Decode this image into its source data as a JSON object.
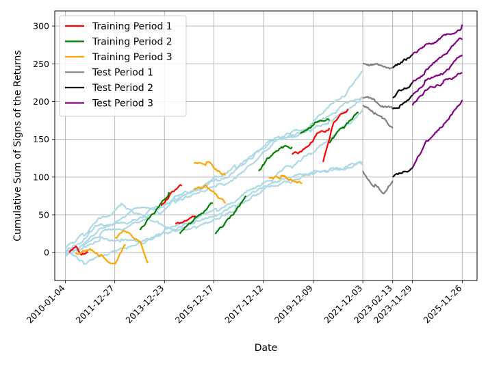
{
  "chart_data": {
    "type": "line",
    "xlabel": "Date",
    "ylabel": "Cumulative Sum of Signs of the Returns",
    "grid": true,
    "legend_position": "top-left",
    "x_type": "date",
    "xlim": [
      "2009-08-01",
      "2026-07-01"
    ],
    "ylim": [
      -37,
      320
    ],
    "x_ticks": [
      "2010-01-04",
      "2011-12-27",
      "2013-12-23",
      "2015-12-17",
      "2017-12-12",
      "2019-12-09",
      "2021-12-03",
      "2023-02-13",
      "2023-11-29",
      "2025-11-26"
    ],
    "y_ticks": [
      0,
      50,
      100,
      150,
      200,
      250,
      300
    ],
    "legend": [
      {
        "name": "Training Period 1",
        "color": "#ff0000"
      },
      {
        "name": "Training Period 2",
        "color": "#008000"
      },
      {
        "name": "Training Period 3",
        "color": "#ffa500"
      },
      {
        "name": "Test Period 1",
        "color": "#808080"
      },
      {
        "name": "Test Period 2",
        "color": "#000000"
      },
      {
        "name": "Test Period 3",
        "color": "#800080"
      }
    ],
    "background_color": "#add8e6",
    "background_series": [
      {
        "points": [
          [
            "2010-01-04",
            0
          ],
          [
            "2010-10-01",
            12
          ],
          [
            "2011-06-01",
            32
          ],
          [
            "2012-04-01",
            45
          ],
          [
            "2013-02-01",
            60
          ],
          [
            "2013-10-01",
            58
          ],
          [
            "2014-06-01",
            75
          ],
          [
            "2015-04-01",
            85
          ],
          [
            "2016-02-01",
            100
          ],
          [
            "2016-11-01",
            112
          ],
          [
            "2017-08-01",
            132
          ],
          [
            "2018-05-01",
            150
          ],
          [
            "2019-02-01",
            160
          ],
          [
            "2019-11-01",
            170
          ],
          [
            "2020-08-01",
            182
          ],
          [
            "2021-05-01",
            198
          ],
          [
            "2021-12-03",
            205
          ]
        ]
      },
      {
        "points": [
          [
            "2010-01-04",
            3
          ],
          [
            "2010-10-01",
            18
          ],
          [
            "2011-06-01",
            38
          ],
          [
            "2012-04-01",
            40
          ],
          [
            "2013-02-01",
            46
          ],
          [
            "2013-10-01",
            60
          ],
          [
            "2014-06-01",
            66
          ],
          [
            "2015-04-01",
            78
          ],
          [
            "2016-02-01",
            90
          ],
          [
            "2016-11-01",
            98
          ],
          [
            "2017-08-01",
            120
          ],
          [
            "2018-05-01",
            145
          ],
          [
            "2019-02-01",
            152
          ],
          [
            "2019-11-01",
            168
          ],
          [
            "2020-08-01",
            195
          ],
          [
            "2021-05-01",
            215
          ],
          [
            "2021-12-03",
            240
          ]
        ]
      },
      {
        "points": [
          [
            "2010-01-04",
            -3
          ],
          [
            "2010-10-01",
            8
          ],
          [
            "2011-06-01",
            20
          ],
          [
            "2012-04-01",
            18
          ],
          [
            "2013-02-01",
            12
          ],
          [
            "2013-10-01",
            25
          ],
          [
            "2014-06-01",
            35
          ],
          [
            "2015-04-01",
            45
          ],
          [
            "2016-02-01",
            55
          ],
          [
            "2016-11-01",
            68
          ],
          [
            "2017-08-01",
            85
          ],
          [
            "2018-05-01",
            98
          ],
          [
            "2019-02-01",
            112
          ],
          [
            "2019-11-01",
            130
          ],
          [
            "2020-08-01",
            150
          ],
          [
            "2021-05-01",
            170
          ],
          [
            "2021-12-03",
            190
          ]
        ]
      },
      {
        "points": [
          [
            "2010-01-04",
            5
          ],
          [
            "2010-10-01",
            22
          ],
          [
            "2011-06-01",
            45
          ],
          [
            "2012-04-01",
            65
          ],
          [
            "2013-02-01",
            50
          ],
          [
            "2013-10-01",
            38
          ],
          [
            "2014-06-01",
            30
          ],
          [
            "2015-04-01",
            42
          ],
          [
            "2016-02-01",
            50
          ],
          [
            "2016-11-01",
            62
          ],
          [
            "2017-08-01",
            75
          ],
          [
            "2018-05-01",
            88
          ],
          [
            "2019-02-01",
            95
          ],
          [
            "2019-11-01",
            105
          ],
          [
            "2020-08-01",
            110
          ],
          [
            "2021-05-01",
            115
          ],
          [
            "2021-12-03",
            118
          ]
        ]
      },
      {
        "points": [
          [
            "2010-01-04",
            -2
          ],
          [
            "2010-10-01",
            -15
          ],
          [
            "2011-06-01",
            -5
          ],
          [
            "2012-04-01",
            5
          ],
          [
            "2013-02-01",
            15
          ],
          [
            "2013-10-01",
            22
          ],
          [
            "2014-06-01",
            28
          ],
          [
            "2015-04-01",
            32
          ],
          [
            "2016-02-01",
            45
          ],
          [
            "2016-11-01",
            60
          ],
          [
            "2017-08-01",
            80
          ],
          [
            "2018-05-01",
            92
          ],
          [
            "2019-02-01",
            100
          ],
          [
            "2019-11-01",
            106
          ],
          [
            "2020-08-01",
            110
          ],
          [
            "2021-05-01",
            112
          ],
          [
            "2021-12-03",
            118
          ]
        ]
      },
      {
        "points": [
          [
            "2010-01-04",
            2
          ],
          [
            "2010-10-01",
            10
          ],
          [
            "2011-06-01",
            25
          ],
          [
            "2012-04-01",
            30
          ],
          [
            "2013-02-01",
            42
          ],
          [
            "2013-10-01",
            52
          ],
          [
            "2014-06-01",
            70
          ],
          [
            "2015-04-01",
            82
          ],
          [
            "2016-02-01",
            95
          ],
          [
            "2016-11-01",
            110
          ],
          [
            "2017-08-01",
            130
          ],
          [
            "2018-05-01",
            148
          ],
          [
            "2019-02-01",
            155
          ],
          [
            "2019-11-01",
            160
          ],
          [
            "2020-08-01",
            175
          ],
          [
            "2021-05-01",
            190
          ],
          [
            "2021-12-03",
            205
          ]
        ]
      }
    ],
    "series": [
      {
        "name": "Training Period 1",
        "color": "#ff0000",
        "segments": [
          [
            [
              "2010-03-01",
              0
            ],
            [
              "2010-06-01",
              8
            ],
            [
              "2010-09-01",
              -3
            ],
            [
              "2010-12-01",
              0
            ]
          ],
          [
            [
              "2013-11-01",
              62
            ],
            [
              "2014-04-01",
              80
            ],
            [
              "2014-09-01",
              88
            ]
          ],
          [
            [
              "2014-06-01",
              38
            ],
            [
              "2014-11-01",
              42
            ],
            [
              "2015-04-01",
              46
            ]
          ],
          [
            [
              "2019-02-01",
              130
            ],
            [
              "2019-07-01",
              135
            ],
            [
              "2020-02-01",
              158
            ],
            [
              "2020-08-01",
              165
            ]
          ],
          [
            [
              "2020-05-01",
              120
            ],
            [
              "2020-10-01",
              172
            ],
            [
              "2021-05-01",
              190
            ]
          ]
        ]
      },
      {
        "name": "Training Period 2",
        "color": "#008000",
        "segments": [
          [
            [
              "2013-01-01",
              30
            ],
            [
              "2013-06-01",
              48
            ],
            [
              "2013-11-01",
              65
            ],
            [
              "2014-03-01",
              80
            ]
          ],
          [
            [
              "2014-08-01",
              25
            ],
            [
              "2015-01-01",
              38
            ],
            [
              "2015-06-01",
              50
            ],
            [
              "2015-12-01",
              65
            ]
          ],
          [
            [
              "2016-01-01",
              25
            ],
            [
              "2016-06-01",
              40
            ],
            [
              "2016-11-01",
              55
            ],
            [
              "2017-04-01",
              75
            ]
          ],
          [
            [
              "2017-10-01",
              108
            ],
            [
              "2018-03-01",
              125
            ],
            [
              "2018-09-01",
              140
            ],
            [
              "2019-02-01",
              140
            ]
          ],
          [
            [
              "2019-06-01",
              158
            ],
            [
              "2020-01-01",
              172
            ],
            [
              "2020-08-01",
              175
            ]
          ],
          [
            [
              "2020-08-01",
              145
            ],
            [
              "2021-03-01",
              165
            ],
            [
              "2021-10-01",
              185
            ]
          ]
        ]
      },
      {
        "name": "Training Period 3",
        "color": "#ffa500",
        "segments": [
          [
            [
              "2010-06-01",
              0
            ],
            [
              "2011-01-01",
              5
            ],
            [
              "2011-06-01",
              -3
            ],
            [
              "2012-01-01",
              -15
            ],
            [
              "2012-06-01",
              10
            ]
          ],
          [
            [
              "2012-01-01",
              20
            ],
            [
              "2012-06-01",
              28
            ],
            [
              "2013-01-01",
              15
            ],
            [
              "2013-05-01",
              -12
            ]
          ],
          [
            [
              "2015-03-01",
              118
            ],
            [
              "2015-09-01",
              120
            ],
            [
              "2016-02-01",
              108
            ],
            [
              "2016-06-01",
              102
            ]
          ],
          [
            [
              "2015-03-01",
              85
            ],
            [
              "2015-09-01",
              88
            ],
            [
              "2016-02-01",
              75
            ],
            [
              "2016-06-01",
              65
            ]
          ],
          [
            [
              "2018-03-01",
              100
            ],
            [
              "2018-09-01",
              102
            ],
            [
              "2019-03-01",
              95
            ],
            [
              "2019-07-01",
              92
            ]
          ]
        ]
      },
      {
        "name": "Test Period 1",
        "color": "#808080",
        "segments": [
          [
            [
              "2021-12-03",
              250
            ],
            [
              "2022-06-01",
              250
            ],
            [
              "2023-02-13",
              245
            ]
          ],
          [
            [
              "2021-12-03",
              205
            ],
            [
              "2022-06-01",
              200
            ],
            [
              "2023-02-13",
              190
            ]
          ],
          [
            [
              "2021-12-03",
              195
            ],
            [
              "2022-06-01",
              185
            ],
            [
              "2023-02-13",
              165
            ]
          ],
          [
            [
              "2021-12-03",
              108
            ],
            [
              "2022-06-01",
              90
            ],
            [
              "2022-10-01",
              78
            ],
            [
              "2023-02-13",
              95
            ]
          ]
        ]
      },
      {
        "name": "Test Period 2",
        "color": "#000000",
        "segments": [
          [
            [
              "2023-02-13",
              245
            ],
            [
              "2023-06-01",
              250
            ],
            [
              "2023-11-29",
              262
            ]
          ],
          [
            [
              "2023-02-13",
              205
            ],
            [
              "2023-06-01",
              215
            ],
            [
              "2023-11-29",
              225
            ]
          ],
          [
            [
              "2023-02-13",
              190
            ],
            [
              "2023-06-01",
              195
            ],
            [
              "2023-11-29",
              208
            ]
          ],
          [
            [
              "2023-02-13",
              100
            ],
            [
              "2023-06-01",
              105
            ],
            [
              "2023-11-29",
              112
            ]
          ]
        ]
      },
      {
        "name": "Test Period 3",
        "color": "#800080",
        "segments": [
          [
            [
              "2023-11-29",
              262
            ],
            [
              "2024-06-01",
              275
            ],
            [
              "2025-03-01",
              288
            ],
            [
              "2025-11-26",
              302
            ]
          ],
          [
            [
              "2023-11-29",
              225
            ],
            [
              "2024-06-01",
              240
            ],
            [
              "2025-03-01",
              262
            ],
            [
              "2025-11-26",
              282
            ]
          ],
          [
            [
              "2023-11-29",
              208
            ],
            [
              "2024-06-01",
              228
            ],
            [
              "2025-03-01",
              238
            ],
            [
              "2025-11-26",
              262
            ]
          ],
          [
            [
              "2023-11-29",
              195
            ],
            [
              "2024-06-01",
              215
            ],
            [
              "2025-03-01",
              228
            ],
            [
              "2025-11-26",
              238
            ]
          ],
          [
            [
              "2023-11-29",
              112
            ],
            [
              "2024-06-01",
              145
            ],
            [
              "2025-03-01",
              170
            ],
            [
              "2025-11-26",
              202
            ]
          ]
        ]
      }
    ]
  }
}
